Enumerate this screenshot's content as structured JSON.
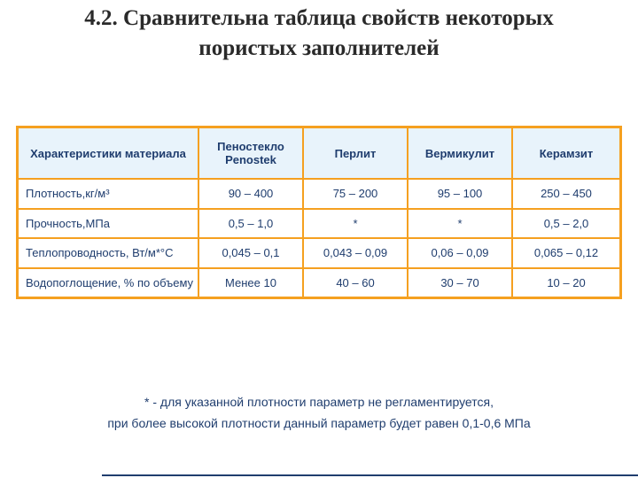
{
  "title": {
    "line1": "4.2. Сравнительна таблица свойств некоторых",
    "line2": "пористых заполнителей"
  },
  "table": {
    "headers": [
      "Характеристики материала",
      "Пеностекло Penostek",
      "Перлит",
      "Вермикулит",
      "Керамзит"
    ],
    "rows": [
      [
        "Плотность,кг/м³",
        "90 – 400",
        "75 – 200",
        "95 – 100",
        "250 – 450"
      ],
      [
        "Прочность,МПа",
        "0,5 – 1,0",
        "*",
        "*",
        "0,5 – 2,0"
      ],
      [
        "Теплопроводность, Вт/м*°С",
        "0,045 – 0,1",
        "0,043 – 0,09",
        "0,06 – 0,09",
        "0,065 – 0,12"
      ],
      [
        "Водопоглощение, % по объему",
        "Менее 10",
        "40 – 60",
        "30 – 70",
        "10 – 20"
      ]
    ]
  },
  "footnote": {
    "line1": "* - для указанной плотности параметр не регламентируется,",
    "line2": "при более высокой плотности  данный параметр будет равен 0,1-0,6 МПа"
  },
  "colors": {
    "border": "#f5a020",
    "text": "#1f3d6e"
  }
}
